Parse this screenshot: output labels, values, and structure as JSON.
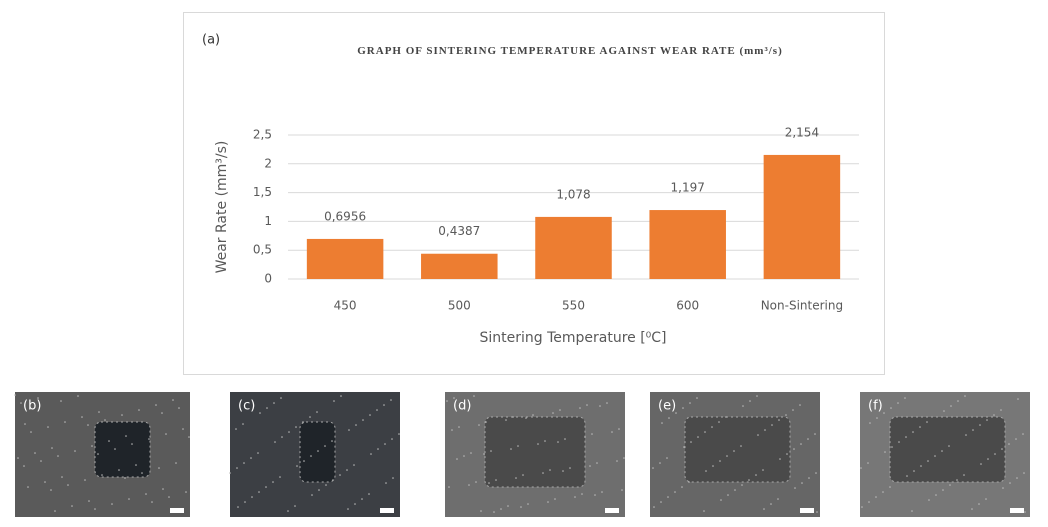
{
  "chart_data": {
    "type": "bar",
    "panel_label": "(a)",
    "title": "GRAPH OF SINTERING TEMPERATURE AGAINST WEAR RATE (mm³/s)",
    "y_label": "Wear Rate (mm³/s)",
    "x_label": "Sintering Temperature [⁰C]",
    "categories": [
      "450",
      "500",
      "550",
      "600",
      "Non-Sintering"
    ],
    "values": [
      0.6956,
      0.4387,
      1.078,
      1.197,
      2.154
    ],
    "value_labels": [
      "0,6956",
      "0,4387",
      "1,078",
      "1,197",
      "2,154"
    ],
    "color": "#ed7d31",
    "ylim": [
      0,
      2.5
    ],
    "yticks": [
      0,
      {
        "value": 0.5,
        "label": "0,5"
      },
      1,
      {
        "value": 1.5,
        "label": "1,5"
      },
      2,
      {
        "value": 2.5,
        "label": "2,5"
      }
    ],
    "grid": true
  },
  "panels": [
    "(b)",
    "(c)",
    "(d)",
    "(e)",
    "(f)"
  ]
}
